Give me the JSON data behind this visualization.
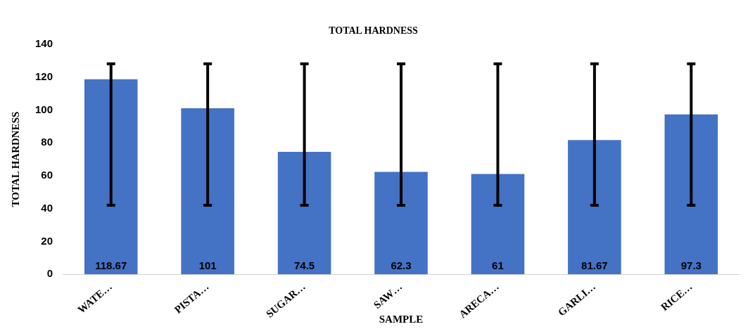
{
  "chart_data": {
    "type": "bar",
    "title": "TOTAL HARDNESS",
    "xlabel": "SAMPLE",
    "ylabel": "TOTAL HARDNESS",
    "categories": [
      "WATE…",
      "PISTA…",
      "SUGAR…",
      "SAW…",
      "ARECA…",
      "GARLI…",
      "RICE…"
    ],
    "values": [
      118.67,
      101,
      74.5,
      62.3,
      61,
      81.67,
      97.3
    ],
    "errors": [
      [
        42,
        128
      ],
      [
        42,
        128
      ],
      [
        42,
        128
      ],
      [
        42,
        128
      ],
      [
        42,
        128
      ],
      [
        42,
        128
      ],
      [
        42,
        128
      ]
    ],
    "color": "#4472c4",
    "data_labels": true,
    "ylim": [
      0,
      140
    ],
    "yticks": [
      0,
      20,
      40,
      60,
      80,
      100,
      120,
      140
    ],
    "grid": false,
    "legend": false
  }
}
